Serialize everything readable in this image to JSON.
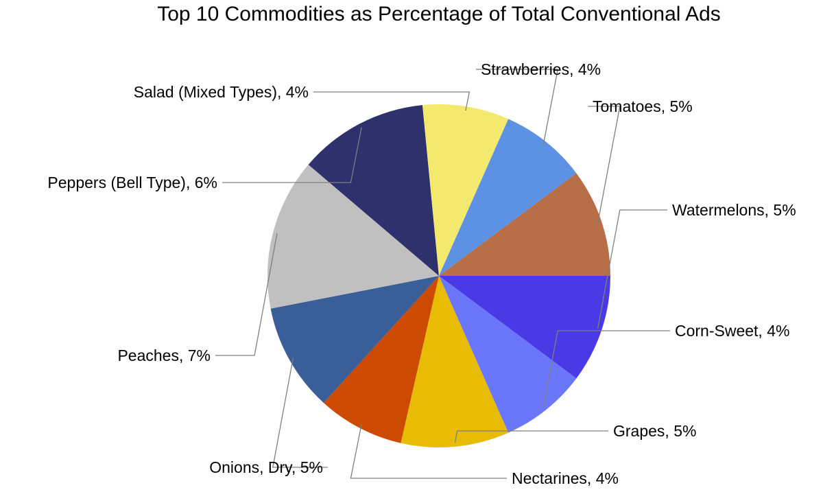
{
  "chart_data": {
    "type": "pie",
    "title": "Top 10 Commodities as Percentage of Total Conventional Ads",
    "slices": [
      {
        "label": "Watermelons",
        "value": 5,
        "color": "#4a3ae6",
        "text": "Watermelons, 5%"
      },
      {
        "label": "Corn-Sweet",
        "value": 4,
        "color": "#6b77fa",
        "text": "Corn-Sweet, 4%"
      },
      {
        "label": "Grapes",
        "value": 5,
        "color": "#e8bc05",
        "text": "Grapes, 5%"
      },
      {
        "label": "Nectarines",
        "value": 4,
        "color": "#cc4a02",
        "text": "Nectarines, 4%"
      },
      {
        "label": "Onions, Dry",
        "value": 5,
        "color": "#3a5e97",
        "text": "Onions, Dry, 5%"
      },
      {
        "label": "Peaches",
        "value": 7,
        "color": "#c0c0c0",
        "text": "Peaches, 7%"
      },
      {
        "label": "Peppers (Bell Type)",
        "value": 6,
        "color": "#2e316b",
        "text": "Peppers (Bell Type), 6%"
      },
      {
        "label": "Salad (Mixed Types)",
        "value": 4,
        "color": "#f3e96f",
        "text": "Salad (Mixed Types), 4%"
      },
      {
        "label": "Strawberries",
        "value": 4,
        "color": "#5c91e4",
        "text": "Strawberries, 4%"
      },
      {
        "label": "Tomatoes",
        "value": 5,
        "color": "#b86e47",
        "text": "Tomatoes, 5%"
      }
    ],
    "start": "3 o'clock",
    "direction": "clockwise",
    "legend": "none",
    "data_labels": "outside with leader lines"
  }
}
